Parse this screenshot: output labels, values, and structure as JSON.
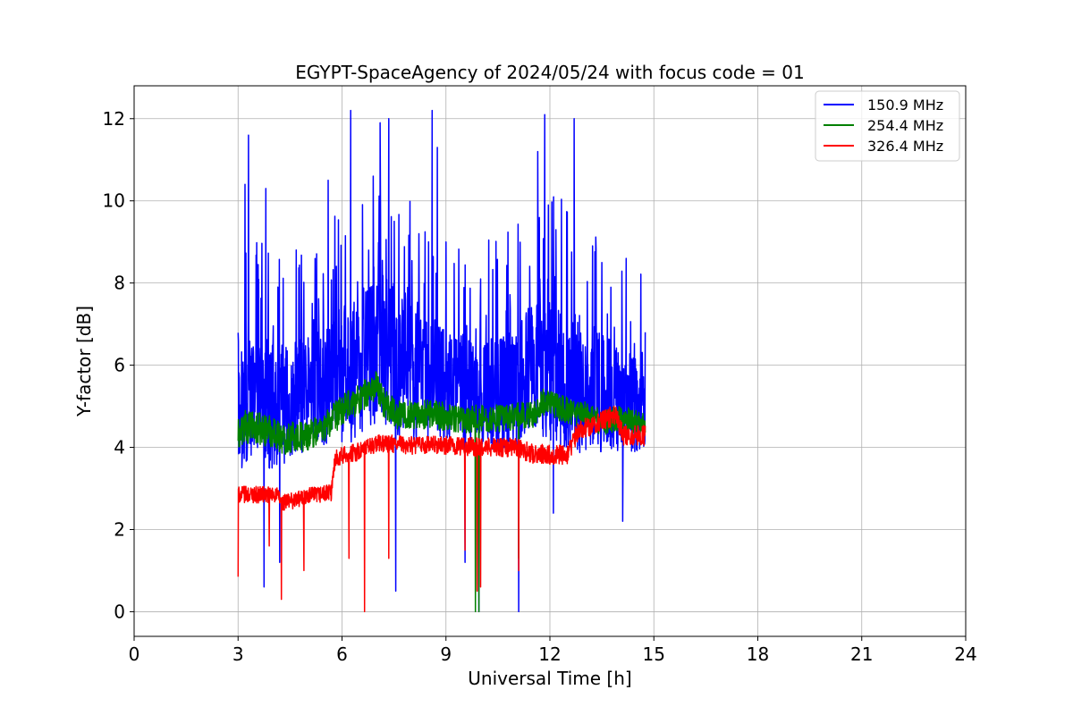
{
  "chart_data": {
    "type": "line",
    "title": "EGYPT-SpaceAgency of 2024/05/24 with focus code = 01",
    "xlabel": "Universal Time [h]",
    "ylabel": "Y-factor [dB]",
    "xlim": [
      0,
      24
    ],
    "ylim": [
      -0.6,
      12.8
    ],
    "xticks": [
      "0",
      "3",
      "6",
      "9",
      "12",
      "15",
      "18",
      "21",
      "24"
    ],
    "yticks": [
      "0",
      "2",
      "4",
      "6",
      "8",
      "10",
      "12"
    ],
    "grid": true,
    "legend_position": "top-right",
    "series": [
      {
        "name": "150.9 MHz",
        "color": "#0000ff",
        "base": [
          [
            3.0,
            4.8
          ],
          [
            3.5,
            5.2
          ],
          [
            4.0,
            5.0
          ],
          [
            4.5,
            5.0
          ],
          [
            5.0,
            5.3
          ],
          [
            5.5,
            5.6
          ],
          [
            6.0,
            5.7
          ],
          [
            6.5,
            6.0
          ],
          [
            7.0,
            6.4
          ],
          [
            7.5,
            6.2
          ],
          [
            8.0,
            5.9
          ],
          [
            8.5,
            5.8
          ],
          [
            9.0,
            5.5
          ],
          [
            9.5,
            5.4
          ],
          [
            10.0,
            5.3
          ],
          [
            10.5,
            5.3
          ],
          [
            11.0,
            5.4
          ],
          [
            11.5,
            5.8
          ],
          [
            12.0,
            6.0
          ],
          [
            12.5,
            5.7
          ],
          [
            13.0,
            5.4
          ],
          [
            13.5,
            5.3
          ],
          [
            14.0,
            5.2
          ],
          [
            14.5,
            5.1
          ],
          [
            14.75,
            5.0
          ]
        ],
        "spread": [
          [
            3.0,
            1.4
          ],
          [
            4.0,
            1.6
          ],
          [
            5.0,
            1.4
          ],
          [
            6.0,
            1.7
          ],
          [
            7.0,
            1.9
          ],
          [
            8.0,
            1.8
          ],
          [
            9.0,
            1.4
          ],
          [
            10.0,
            1.3
          ],
          [
            11.0,
            1.6
          ],
          [
            12.0,
            1.9
          ],
          [
            13.0,
            1.6
          ],
          [
            14.0,
            1.3
          ],
          [
            14.75,
            1.2
          ]
        ],
        "peaks": [
          [
            3.3,
            11.6
          ],
          [
            3.2,
            10.4
          ],
          [
            3.8,
            10.3
          ],
          [
            4.15,
            7.9
          ],
          [
            5.6,
            10.5
          ],
          [
            6.25,
            12.2
          ],
          [
            6.9,
            10.6
          ],
          [
            7.1,
            11.9
          ],
          [
            7.35,
            12.0
          ],
          [
            8.6,
            12.2
          ],
          [
            8.75,
            11.3
          ],
          [
            9.0,
            9.0
          ],
          [
            10.0,
            8.1
          ],
          [
            11.65,
            11.2
          ],
          [
            11.85,
            12.1
          ],
          [
            12.7,
            12.0
          ],
          [
            13.5,
            8.5
          ],
          [
            14.2,
            8.6
          ],
          [
            14.75,
            6.8
          ]
        ],
        "dips": [
          [
            3.75,
            0.6
          ],
          [
            4.2,
            1.2
          ],
          [
            7.55,
            0.5
          ],
          [
            9.55,
            1.2
          ],
          [
            9.95,
            0.0
          ],
          [
            11.1,
            0.0
          ],
          [
            12.1,
            2.4
          ],
          [
            14.1,
            2.2
          ]
        ]
      },
      {
        "name": "254.4 MHz",
        "color": "#008000",
        "base": [
          [
            3.0,
            4.3
          ],
          [
            3.2,
            4.5
          ],
          [
            4.0,
            4.4
          ],
          [
            4.3,
            4.2
          ],
          [
            5.0,
            4.3
          ],
          [
            5.5,
            4.5
          ],
          [
            6.0,
            4.9
          ],
          [
            6.5,
            5.2
          ],
          [
            7.0,
            5.5
          ],
          [
            7.2,
            5.1
          ],
          [
            7.6,
            4.8
          ],
          [
            8.5,
            4.8
          ],
          [
            9.5,
            4.7
          ],
          [
            10.5,
            4.7
          ],
          [
            11.5,
            4.8
          ],
          [
            11.8,
            5.1
          ],
          [
            12.5,
            4.9
          ],
          [
            13.0,
            4.8
          ],
          [
            13.5,
            4.6
          ],
          [
            14.0,
            4.7
          ],
          [
            14.75,
            4.6
          ]
        ],
        "spread": [
          [
            3.0,
            0.4
          ],
          [
            14.75,
            0.3
          ]
        ],
        "peaks": [
          [
            7.0,
            5.8
          ]
        ],
        "dips": [
          [
            9.85,
            0.0
          ],
          [
            9.95,
            0.0
          ],
          [
            11.1,
            1.3
          ]
        ]
      },
      {
        "name": "326.4 MHz",
        "color": "#ff0000",
        "base": [
          [
            3.0,
            2.85
          ],
          [
            4.1,
            2.85
          ],
          [
            4.3,
            2.65
          ],
          [
            5.0,
            2.8
          ],
          [
            5.7,
            2.9
          ],
          [
            5.8,
            3.75
          ],
          [
            6.5,
            3.9
          ],
          [
            7.0,
            4.1
          ],
          [
            8.0,
            4.05
          ],
          [
            9.0,
            4.05
          ],
          [
            10.0,
            4.0
          ],
          [
            11.0,
            4.0
          ],
          [
            11.5,
            3.85
          ],
          [
            12.5,
            3.8
          ],
          [
            12.8,
            4.4
          ],
          [
            13.4,
            4.6
          ],
          [
            13.9,
            4.8
          ],
          [
            14.1,
            4.3
          ],
          [
            14.75,
            4.3
          ]
        ],
        "spread": [
          [
            3.0,
            0.2
          ],
          [
            14.75,
            0.25
          ]
        ],
        "peaks": [
          [
            13.85,
            5.0
          ]
        ],
        "dips": [
          [
            3.0,
            0.85
          ],
          [
            3.9,
            1.6
          ],
          [
            4.25,
            0.3
          ],
          [
            4.9,
            1.0
          ],
          [
            6.2,
            1.3
          ],
          [
            6.65,
            0.0
          ],
          [
            7.35,
            1.3
          ],
          [
            9.55,
            1.5
          ],
          [
            9.9,
            0.5
          ],
          [
            10.0,
            0.6
          ],
          [
            11.1,
            1.0
          ]
        ]
      }
    ]
  }
}
